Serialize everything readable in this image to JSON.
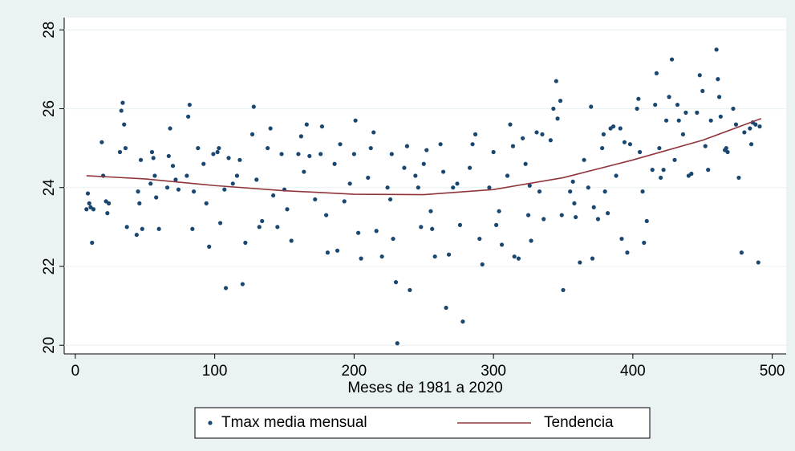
{
  "chart_data": {
    "type": "scatter",
    "xlabel": "Meses de 1981 a 2020",
    "xlim": [
      -8,
      510
    ],
    "ylim": [
      19.78,
      28.31
    ],
    "xticks": [
      0,
      100,
      200,
      300,
      400,
      500
    ],
    "yticks": [
      20,
      22,
      24,
      26,
      28
    ],
    "grid": true,
    "series": [
      {
        "name": "Tmax media mensual",
        "type": "scatter",
        "color": "#1a476f",
        "x": [
          8,
          9,
          10,
          11,
          12,
          13,
          19,
          20,
          22,
          23,
          24,
          32,
          33,
          34,
          35,
          36,
          37,
          44,
          45,
          46,
          47,
          48,
          54,
          55,
          56,
          57,
          58,
          60,
          66,
          67,
          68,
          70,
          72,
          74,
          80,
          81,
          82,
          84,
          85,
          88,
          92,
          94,
          96,
          99,
          102,
          103,
          104,
          107,
          108,
          110,
          113,
          116,
          118,
          120,
          122,
          127,
          128,
          130,
          132,
          134,
          138,
          140,
          142,
          145,
          148,
          150,
          152,
          155,
          160,
          162,
          164,
          166,
          168,
          172,
          176,
          177,
          180,
          181,
          186,
          188,
          190,
          193,
          197,
          200,
          201,
          203,
          205,
          210,
          212,
          214,
          216,
          220,
          224,
          226,
          227,
          228,
          230,
          231,
          236,
          238,
          240,
          244,
          246,
          248,
          250,
          252,
          255,
          256,
          258,
          262,
          264,
          266,
          268,
          271,
          274,
          276,
          278,
          283,
          285,
          287,
          290,
          292,
          297,
          300,
          302,
          304,
          306,
          310,
          312,
          314,
          315,
          318,
          321,
          323,
          325,
          326,
          327,
          331,
          333,
          335,
          336,
          341,
          343,
          345,
          346,
          348,
          349,
          350,
          355,
          357,
          358,
          359,
          362,
          365,
          368,
          370,
          371,
          372,
          375,
          378,
          379,
          380,
          382,
          384,
          386,
          388,
          391,
          392,
          394,
          396,
          398,
          403,
          404,
          405,
          407,
          408,
          410,
          414,
          416,
          417,
          419,
          420,
          422,
          424,
          426,
          428,
          430,
          432,
          433,
          436,
          438,
          440,
          442,
          446,
          448,
          450,
          452,
          454,
          456,
          460,
          461,
          462,
          463,
          466,
          467,
          468,
          472,
          474,
          476,
          478,
          480,
          484,
          485,
          486,
          488,
          490,
          491
        ],
        "values": [
          23.45,
          23.85,
          23.6,
          23.5,
          22.6,
          23.45,
          25.15,
          24.3,
          23.65,
          23.35,
          23.6,
          24.9,
          25.95,
          26.15,
          25.6,
          25.0,
          23.0,
          22.8,
          23.9,
          23.6,
          24.7,
          22.95,
          24.1,
          24.9,
          24.75,
          24.3,
          23.75,
          22.95,
          24.0,
          24.8,
          25.5,
          24.55,
          24.2,
          23.95,
          24.3,
          25.8,
          26.1,
          22.95,
          23.9,
          25.0,
          24.6,
          23.6,
          22.5,
          24.85,
          24.9,
          25.0,
          23.1,
          23.95,
          21.45,
          24.75,
          24.1,
          24.3,
          24.7,
          21.55,
          22.6,
          25.35,
          26.05,
          24.2,
          23.0,
          23.15,
          25.0,
          25.5,
          23.8,
          23.0,
          24.85,
          23.95,
          23.45,
          22.65,
          24.85,
          25.3,
          24.4,
          25.6,
          24.8,
          23.7,
          24.85,
          25.55,
          23.3,
          22.35,
          24.6,
          22.4,
          25.1,
          23.65,
          24.1,
          24.85,
          25.7,
          22.85,
          22.2,
          24.25,
          25.0,
          25.4,
          22.9,
          22.25,
          24.0,
          23.7,
          24.85,
          22.7,
          21.6,
          20.05,
          24.5,
          25.05,
          21.4,
          24.3,
          24.0,
          23.0,
          24.6,
          24.95,
          23.4,
          22.95,
          22.25,
          25.1,
          24.4,
          20.95,
          22.3,
          24.0,
          24.1,
          23.05,
          20.6,
          24.5,
          25.1,
          25.35,
          22.7,
          22.05,
          24.0,
          24.9,
          23.05,
          23.4,
          22.55,
          24.3,
          25.6,
          25.05,
          22.25,
          22.2,
          25.25,
          24.6,
          23.3,
          24.05,
          22.65,
          25.4,
          23.9,
          25.35,
          23.2,
          25.2,
          26.0,
          26.7,
          25.75,
          26.2,
          23.3,
          21.4,
          23.9,
          24.15,
          23.6,
          23.25,
          22.1,
          24.7,
          24.0,
          26.05,
          22.2,
          23.5,
          23.2,
          25.0,
          25.35,
          23.9,
          23.35,
          25.5,
          25.55,
          24.3,
          25.5,
          22.7,
          25.15,
          22.35,
          25.1,
          26.0,
          26.25,
          24.9,
          23.9,
          22.6,
          23.15,
          24.45,
          26.1,
          26.9,
          25.0,
          24.25,
          24.45,
          25.7,
          26.3,
          27.25,
          24.7,
          26.1,
          25.7,
          25.35,
          25.9,
          24.3,
          24.35,
          25.9,
          26.85,
          26.45,
          25.05,
          24.45,
          25.7,
          27.5,
          26.75,
          26.3,
          25.8,
          24.95,
          25.0,
          24.9,
          26.0,
          25.6,
          24.25,
          22.35,
          25.4,
          25.5,
          25.1,
          25.65,
          25.6,
          22.1,
          25.55
        ]
      },
      {
        "name": "Tendencia",
        "type": "line",
        "color": "#90353b",
        "x": [
          8,
          50,
          100,
          150,
          200,
          250,
          300,
          350,
          400,
          450,
          492
        ],
        "values": [
          24.3,
          24.22,
          24.05,
          23.92,
          23.83,
          23.82,
          23.95,
          24.25,
          24.7,
          25.2,
          25.75
        ]
      }
    ]
  }
}
